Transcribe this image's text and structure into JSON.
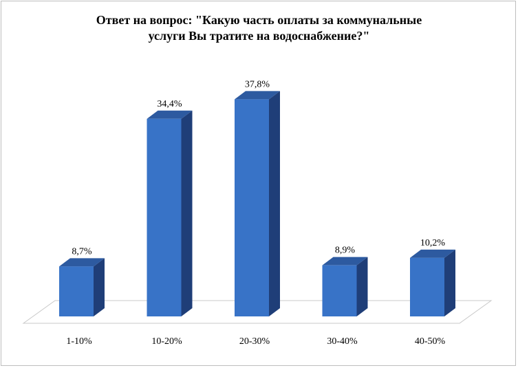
{
  "chart_data": {
    "type": "bar",
    "title": "Ответ на вопрос: \"Какую часть оплаты за коммунальные\nуслуги Вы тратите на водоснабжение?\"",
    "categories": [
      "1-10%",
      "10-20%",
      "20-30%",
      "30-40%",
      "40-50%"
    ],
    "values": [
      8.7,
      34.4,
      37.8,
      8.9,
      10.2
    ],
    "value_labels": [
      "8,7%",
      "34,4%",
      "37,8%",
      "8,9%",
      "10,2%"
    ],
    "xlabel": "",
    "ylabel": "",
    "ylim": [
      0,
      40
    ],
    "grid": false,
    "legend": "none",
    "style": "3d-column",
    "colors": {
      "bar_front": "#3873c7",
      "bar_side": "#1f3e78",
      "bar_top": "#2d5aa0",
      "floor": "#ffffff",
      "floor_edge": "#c8c8c8"
    }
  }
}
